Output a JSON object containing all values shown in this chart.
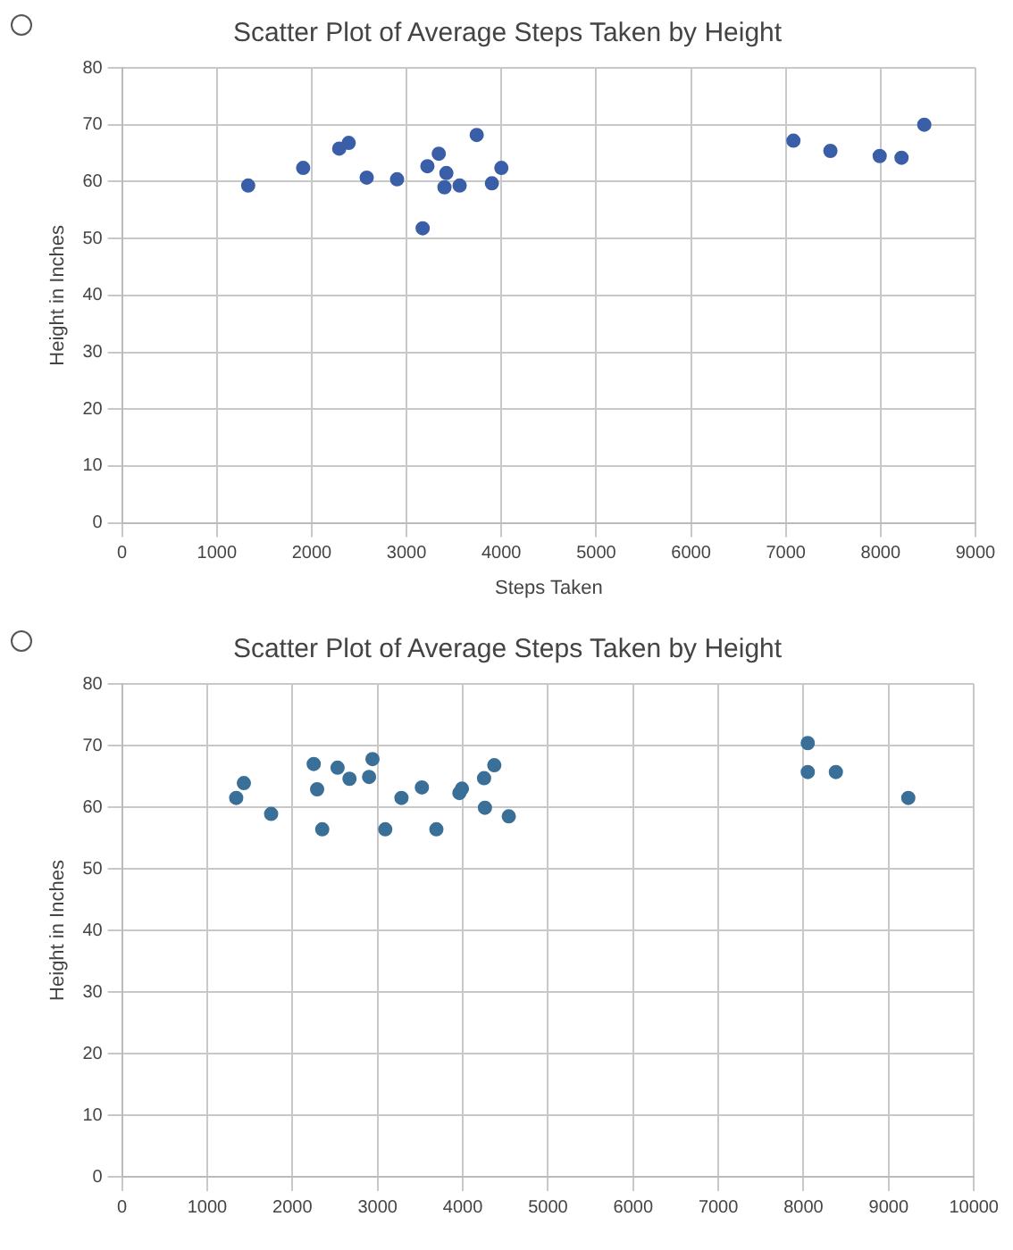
{
  "chart_data": [
    {
      "type": "scatter",
      "title": "Scatter Plot of Average Steps Taken by Height",
      "xlabel": "Steps Taken",
      "ylabel": "Height in Inches",
      "series": [
        {
          "color": "#3a5fa8",
          "x": [
            8460,
            8220,
            7990,
            7470,
            7080,
            4000,
            3900,
            3740,
            3560,
            3340,
            3420,
            3400,
            3220,
            3170,
            2900,
            2580,
            2390,
            2290,
            1910,
            1330
          ],
          "values": [
            70,
            64.2,
            64.5,
            65.4,
            67.2,
            62.4,
            59.7,
            68.2,
            59.3,
            64.9,
            61.5,
            59,
            62.7,
            51.8,
            60.4,
            60.7,
            66.8,
            65.8,
            62.4,
            59.3
          ]
        }
      ],
      "xlim": [
        0,
        9000
      ],
      "xticks": [
        0,
        1000,
        2000,
        3000,
        4000,
        5000,
        6000,
        7000,
        8000,
        9000
      ],
      "ylim": [
        0,
        80
      ],
      "yticks": [
        0,
        10,
        20,
        30,
        40,
        50,
        60,
        70,
        80
      ],
      "grid": true,
      "legend": false,
      "marker": "circle"
    },
    {
      "type": "scatter",
      "title": "Scatter Plot of Average Steps Taken by Height",
      "ylabel": "Height in Inches",
      "series": [
        {
          "color": "#3a6f98",
          "x": [
            9230,
            8380,
            8050,
            8050,
            4540,
            4370,
            4250,
            4260,
            3990,
            3960,
            3690,
            3520,
            3280,
            3090,
            2940,
            2900,
            2670,
            2530,
            2250,
            2290,
            2350,
            1750,
            1430,
            1340
          ],
          "values": [
            61.5,
            65.7,
            70.4,
            65.7,
            58.5,
            66.8,
            64.7,
            59.9,
            63,
            62.3,
            56.4,
            63.2,
            61.5,
            56.4,
            67.8,
            64.9,
            64.6,
            66.4,
            67,
            62.9,
            56.4,
            58.9,
            63.9,
            61.5
          ]
        }
      ],
      "xlim": [
        0,
        10000
      ],
      "xticks": [
        0,
        1000,
        2000,
        3000,
        4000,
        5000,
        6000,
        7000,
        8000,
        9000,
        10000
      ],
      "ylim": [
        0,
        80
      ],
      "yticks": [
        0,
        10,
        20,
        30,
        40,
        50,
        60,
        70,
        80
      ],
      "grid": true,
      "legend": false,
      "marker": "circle"
    }
  ]
}
